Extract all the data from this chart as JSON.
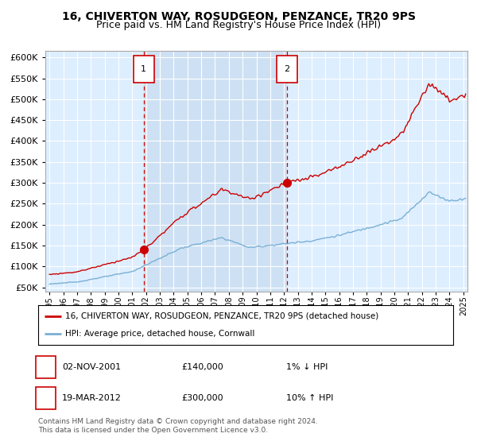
{
  "title": "16, CHIVERTON WAY, ROSUDGEON, PENZANCE, TR20 9PS",
  "subtitle": "Price paid vs. HM Land Registry's House Price Index (HPI)",
  "legend_line1": "16, CHIVERTON WAY, ROSUDGEON, PENZANCE, TR20 9PS (detached house)",
  "legend_line2": "HPI: Average price, detached house, Cornwall",
  "annotation1_date": "02-NOV-2001",
  "annotation1_price": "£140,000",
  "annotation1_hpi": "1% ↓ HPI",
  "annotation2_date": "19-MAR-2012",
  "annotation2_price": "£300,000",
  "annotation2_hpi": "10% ↑ HPI",
  "footer": "Contains HM Land Registry data © Crown copyright and database right 2024.\nThis data is licensed under the Open Government Licence v3.0.",
  "purchase1_year": 2001.833,
  "purchase1_value": 140000,
  "purchase2_year": 2012.208,
  "purchase2_value": 300000,
  "ylim_min": 40000,
  "ylim_max": 615000,
  "yticks": [
    50000,
    100000,
    150000,
    200000,
    250000,
    300000,
    350000,
    400000,
    450000,
    500000,
    550000,
    600000
  ],
  "xlim_min": 1994.7,
  "xlim_max": 2025.3,
  "hpi_color": "#7ab0d4",
  "price_color": "#cc0000",
  "bg_color": "#ddeeff",
  "shade_color": "#c8dcf0",
  "grid_color": "#ffffff",
  "vline_color": "#cc0000",
  "title_fontsize": 10,
  "subtitle_fontsize": 9
}
